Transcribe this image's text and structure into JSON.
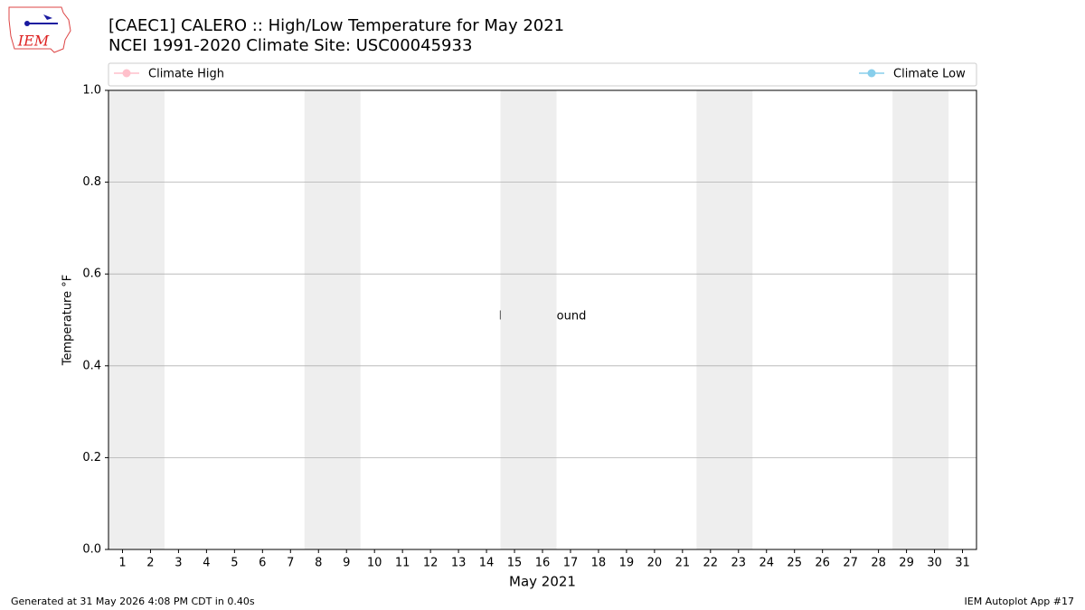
{
  "chart_data": {
    "type": "line",
    "title": "[CAEC1] CALERO :: High/Low Temperature for May 2021",
    "subtitle": "NCEI 1991-2020 Climate Site: USC00045933",
    "y_label": "Temperature °F",
    "x_label": "May 2021",
    "annotation": "No Data Found",
    "logo_text": "IEM",
    "footer_left": "Generated at 31 May 2026 4:08 PM CDT in 0.40s",
    "footer_right": "IEM Autoplot App #17",
    "series": [
      {
        "name": "Climate High",
        "color": "pink",
        "values": []
      },
      {
        "name": "Climate Low",
        "color": "skyblue",
        "values": []
      }
    ],
    "xlim": [
      0.5,
      31.5
    ],
    "xticks": [
      1,
      2,
      3,
      4,
      5,
      6,
      7,
      8,
      9,
      10,
      11,
      12,
      13,
      14,
      15,
      16,
      17,
      18,
      19,
      20,
      21,
      22,
      23,
      24,
      25,
      26,
      27,
      28,
      29,
      30,
      31
    ],
    "ylim": [
      0,
      1
    ],
    "yticks": [
      {
        "value": 0,
        "label": "0.0"
      },
      0.2,
      0.4,
      0.6,
      0.8,
      {
        "value": 1,
        "label": "1.0"
      }
    ],
    "grid": true,
    "shaded_x": [
      [
        0.5,
        2.5
      ],
      [
        7.5,
        9.5
      ],
      [
        14.5,
        16.5
      ],
      [
        21.5,
        23.5
      ],
      [
        28.5,
        30.5
      ]
    ],
    "shade_color": "#eeeeee"
  }
}
